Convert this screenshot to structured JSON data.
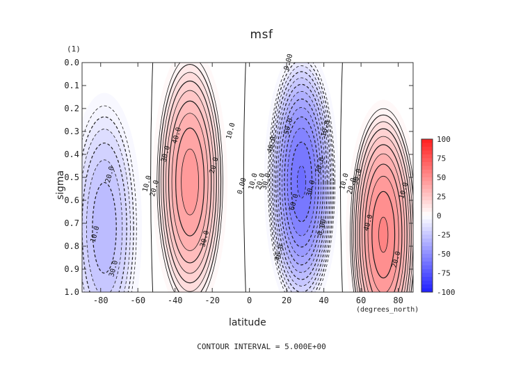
{
  "chart_data": {
    "type": "contour",
    "title": "msf",
    "xlabel": "latitude",
    "ylabel": "sigma",
    "y_units_label": "(1)",
    "x_units_label": "(degrees_north)",
    "footer": "CONTOUR INTERVAL = 5.000E+00",
    "xlim": [
      -90,
      88
    ],
    "ylim": [
      1.0,
      0.0
    ],
    "x_ticks": [
      -80,
      -60,
      -40,
      -20,
      0,
      20,
      40,
      60,
      80
    ],
    "y_ticks": [
      "0.0",
      "0.1",
      "0.2",
      "0.3",
      "0.4",
      "0.5",
      "0.6",
      "0.7",
      "0.8",
      "0.9",
      "1.0"
    ],
    "colorbar_ticks": [
      "100",
      "75",
      "50",
      "25",
      "0",
      "-25",
      "-50",
      "-75",
      "-100"
    ],
    "contour_interval": 5,
    "cells": [
      {
        "lat": -78,
        "sigma": 0.72,
        "value": -33,
        "sign": "negative"
      },
      {
        "lat": -32,
        "sigma": 0.52,
        "value": 47,
        "sign": "positive"
      },
      {
        "lat": 28,
        "sigma": 0.52,
        "value": -65,
        "sign": "negative"
      },
      {
        "lat": 72,
        "sigma": 0.75,
        "value": 55,
        "sign": "positive"
      }
    ],
    "contour_labels": [
      {
        "text": "0.00",
        "lat": 22,
        "sigma": 0.0
      },
      {
        "text": "10.0",
        "lat": -82,
        "sigma": 0.75
      },
      {
        "text": "20.0",
        "lat": -74,
        "sigma": 0.49
      },
      {
        "text": "30.0",
        "lat": -72,
        "sigma": 0.9
      },
      {
        "text": "10.0",
        "lat": -54,
        "sigma": 0.53
      },
      {
        "text": "20.0",
        "lat": -50,
        "sigma": 0.55
      },
      {
        "text": "30.0",
        "lat": -44,
        "sigma": 0.4
      },
      {
        "text": "40.0",
        "lat": -38,
        "sigma": 0.32
      },
      {
        "text": "20.0",
        "lat": -18,
        "sigma": 0.45
      },
      {
        "text": "10.0",
        "lat": -9,
        "sigma": 0.3
      },
      {
        "text": "30.0",
        "lat": -23,
        "sigma": 0.77
      },
      {
        "text": "0.00",
        "lat": -3,
        "sigma": 0.54
      },
      {
        "text": "10.0",
        "lat": 3,
        "sigma": 0.52
      },
      {
        "text": "20.0",
        "lat": 7,
        "sigma": 0.52
      },
      {
        "text": "30.0",
        "lat": 10,
        "sigma": 0.52
      },
      {
        "text": "40.0",
        "lat": 13,
        "sigma": 0.36
      },
      {
        "text": "50.0",
        "lat": 22,
        "sigma": 0.28
      },
      {
        "text": "60.0",
        "lat": 25,
        "sigma": 0.61
      },
      {
        "text": "30.0",
        "lat": 34,
        "sigma": 0.55
      },
      {
        "text": "40.0",
        "lat": 17,
        "sigma": 0.83
      },
      {
        "text": "20.0",
        "lat": 39,
        "sigma": 0.45
      },
      {
        "text": "10.0",
        "lat": 42,
        "sigma": 0.29
      },
      {
        "text": "0.00",
        "lat": 40,
        "sigma": 0.72
      },
      {
        "text": "10.0",
        "lat": 52,
        "sigma": 0.52
      },
      {
        "text": "20.0",
        "lat": 56,
        "sigma": 0.54
      },
      {
        "text": "30.0",
        "lat": 59,
        "sigma": 0.5
      },
      {
        "text": "40.0",
        "lat": 65,
        "sigma": 0.7
      },
      {
        "text": "20.0",
        "lat": 80,
        "sigma": 0.86
      },
      {
        "text": "10.0",
        "lat": 84,
        "sigma": 0.56
      }
    ]
  },
  "colors": {
    "positive": "#ff2a2a",
    "negative": "#2a2aff",
    "zero": "#ffffff"
  }
}
